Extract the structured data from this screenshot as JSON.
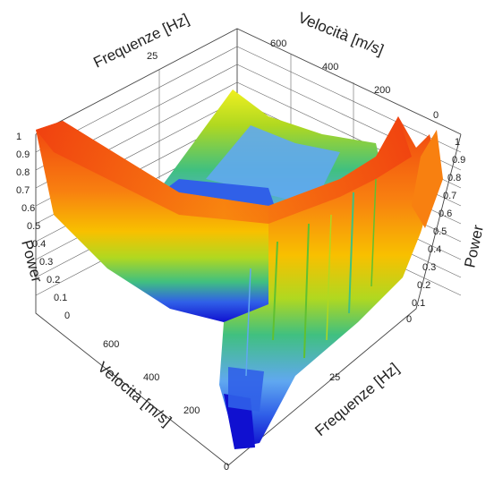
{
  "chart_data": {
    "type": "surface-3d",
    "title": "",
    "axes": {
      "frequency": {
        "label": "Frequenze [Hz]",
        "ticks": [
          "25"
        ],
        "range": [
          0,
          50
        ]
      },
      "velocity": {
        "label": "Velocità [m/s]",
        "ticks": [
          "0",
          "200",
          "400",
          "600"
        ],
        "range": [
          0,
          700
        ]
      },
      "power": {
        "label": "Power",
        "ticks": [
          "0",
          "0.1",
          "0.2",
          "0.3",
          "0.4",
          "0.5",
          "0.6",
          "0.7",
          "0.8",
          "0.9",
          "1"
        ],
        "range": [
          0,
          1
        ]
      }
    },
    "colormap": [
      "#1010d0",
      "#3060e8",
      "#60a8f0",
      "#40c080",
      "#60c030",
      "#b0d820",
      "#f0f020",
      "#f8c000",
      "#f88010",
      "#f04010"
    ],
    "grid": true
  }
}
